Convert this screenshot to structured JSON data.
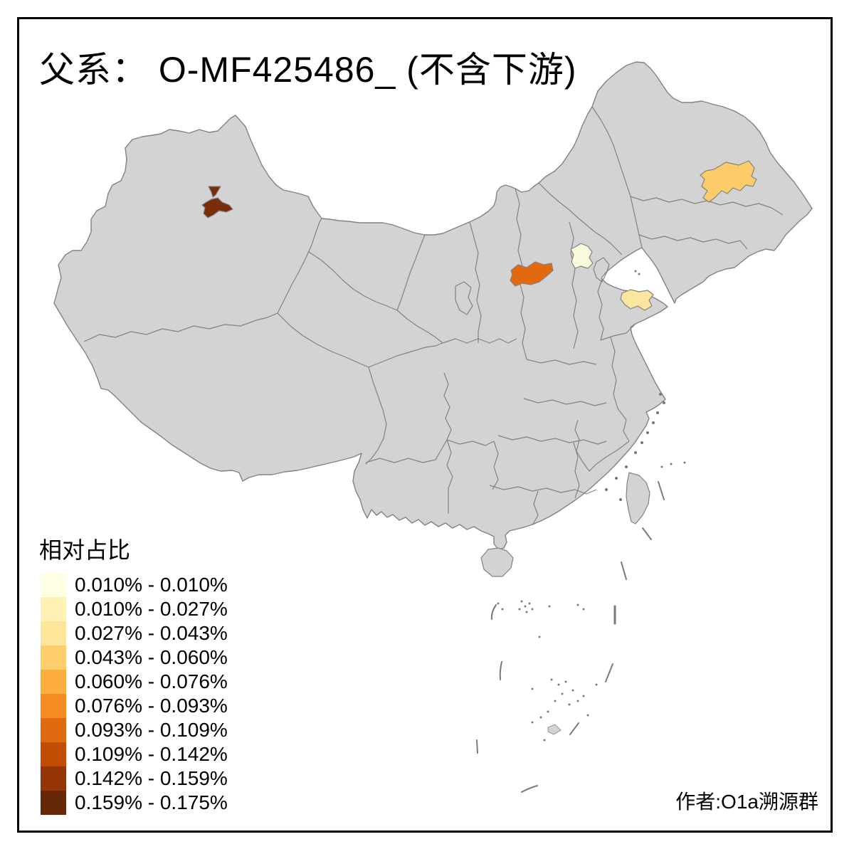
{
  "title": "父系： O-MF425486_ (不含下游)",
  "author": "作者:O1a溯源群",
  "legend": {
    "title": "相对占比",
    "classes": [
      {
        "color": "#FFFFE3",
        "label": "0.010% - 0.010%"
      },
      {
        "color": "#FEF3B4",
        "label": "0.010% - 0.027%"
      },
      {
        "color": "#FDE69A",
        "label": "0.027% - 0.043%"
      },
      {
        "color": "#FDCE6B",
        "label": "0.043% - 0.060%"
      },
      {
        "color": "#FDAD3D",
        "label": "0.060% - 0.076%"
      },
      {
        "color": "#F68B22",
        "label": "0.076% - 0.093%"
      },
      {
        "color": "#E06A10",
        "label": "0.093% - 0.109%"
      },
      {
        "color": "#C14D04",
        "label": "0.109% - 0.142%"
      },
      {
        "color": "#933504",
        "label": "0.142% - 0.159%"
      },
      {
        "color": "#642806",
        "label": "0.159% - 0.175%"
      }
    ]
  },
  "map": {
    "background": "#FFFFFF",
    "frame_color": "#000000",
    "land_color": "#D3D3D3",
    "border_color": "#828282",
    "dash_line_color": "#7A7A7A",
    "regions": [
      {
        "name": "heilongjiang-harbin",
        "color": "#FCCC68"
      },
      {
        "name": "beijing",
        "color": "#FAFADC"
      },
      {
        "name": "shanxi-north",
        "color": "#E2690E"
      },
      {
        "name": "shandong-peninsula",
        "color": "#FAE69E"
      },
      {
        "name": "xinjiang-north-a",
        "color": "#7B2C08"
      },
      {
        "name": "xinjiang-north-b",
        "color": "#7B2C08"
      }
    ]
  }
}
